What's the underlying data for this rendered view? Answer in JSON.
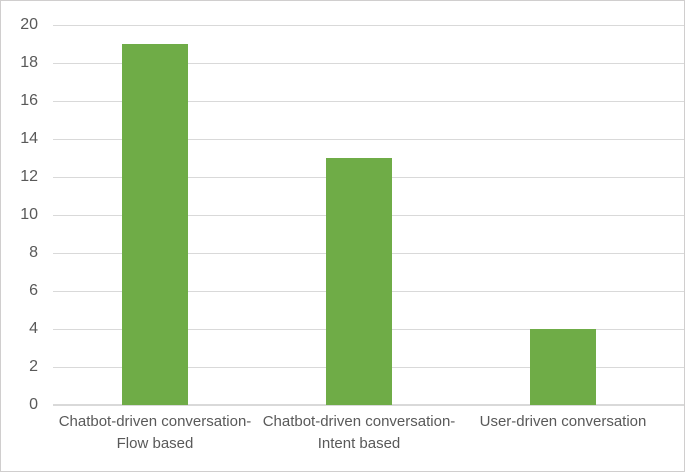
{
  "chart_data": {
    "type": "bar",
    "title": "",
    "xlabel": "",
    "ylabel": "",
    "categories": [
      "Chatbot-driven conversation-Flow based",
      "Chatbot-driven conversation-Intent based",
      "User-driven conversation"
    ],
    "values": [
      19,
      13,
      4
    ],
    "yticks": [
      0,
      2,
      4,
      6,
      8,
      10,
      12,
      14,
      16,
      18,
      20
    ],
    "ylim": [
      0,
      20
    ],
    "grid": true,
    "legend": false,
    "colors": {
      "bar": "#6fac47",
      "gridline": "#d9d9d9",
      "axis_line": "#d9d9d9",
      "tick_label": "#595959",
      "frame_border": "#d0cece",
      "background": "#ffffff"
    }
  }
}
